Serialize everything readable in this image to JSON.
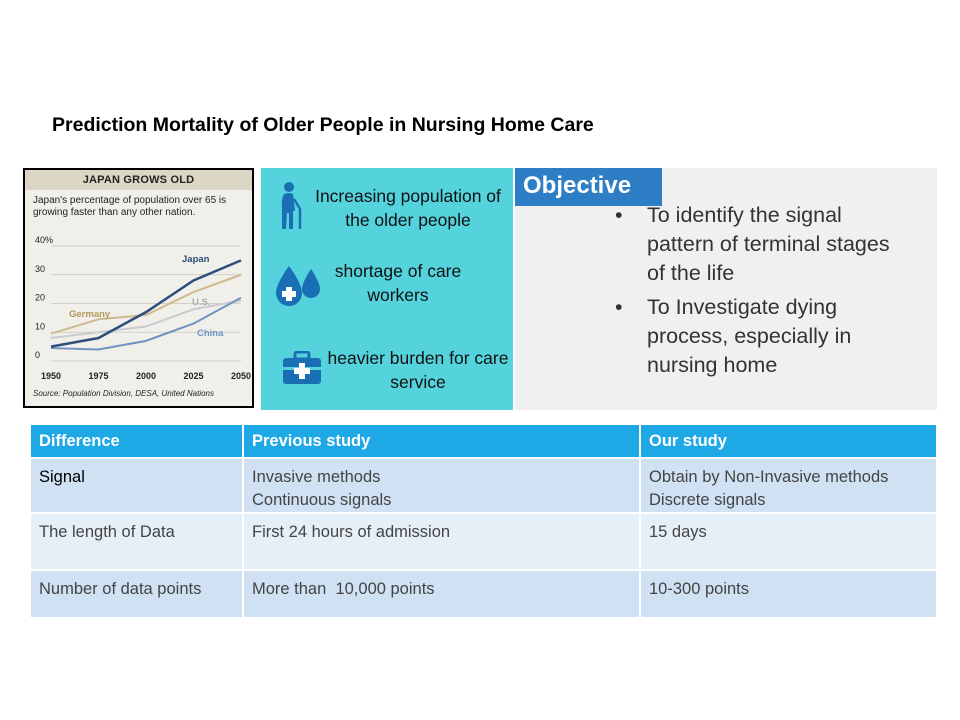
{
  "slide": {
    "title": "Prediction Mortality of Older People in Nursing Home Care"
  },
  "chart": {
    "header": "JAPAN GROWS OLD",
    "description": "Japan's percentage of population over 65 is growing faster than any other nation.",
    "source": "Source: Population Division, DESA, United Nations",
    "background": "#f0efe9",
    "header_bg": "#dcd6c4"
  },
  "chart_data": {
    "type": "line",
    "title": "JAPAN GROWS OLD",
    "x": [
      1950,
      1975,
      2000,
      2025,
      2050
    ],
    "x_tick_labels": [
      "1950",
      "1975",
      "2000",
      "2025",
      "2050"
    ],
    "y_tick_labels": [
      "40%",
      "30",
      "20",
      "10",
      "0"
    ],
    "ylim": [
      0,
      40
    ],
    "series": [
      {
        "name": "Japan",
        "color": "#2c4f7c",
        "values": [
          5,
          8,
          17,
          28,
          35
        ]
      },
      {
        "name": "Germany",
        "color": "#cdbb8f",
        "values": [
          9.5,
          14.5,
          16,
          24,
          30
        ]
      },
      {
        "name": "U.S.",
        "color": "#c9cbd2",
        "values": [
          8,
          10,
          12,
          18,
          21
        ]
      },
      {
        "name": "China",
        "color": "#6e93c1",
        "values": [
          4.5,
          4,
          7,
          13,
          22
        ]
      }
    ],
    "legend": "inline labels",
    "grid": true
  },
  "issues": [
    {
      "text": "Increasing population of the older people",
      "icon": "elderly-person-icon"
    },
    {
      "text": "shortage of care workers",
      "icon": "medical-drops-icon"
    },
    {
      "text": "heavier burden for care service",
      "icon": "first-aid-kit-icon"
    }
  ],
  "objective": {
    "label": "Objective",
    "items": [
      "To identify the signal pattern of terminal stages of the life",
      "To Investigate dying process, especially in nursing home"
    ],
    "bullet": "•"
  },
  "table": {
    "headers": [
      "Difference",
      "Previous study",
      "Our study"
    ],
    "rows": [
      {
        "difference": "Signal",
        "previous": [
          "Invasive methods",
          "Continuous signals"
        ],
        "ours": [
          "Obtain by Non-Invasive methods",
          "Discrete signals"
        ]
      },
      {
        "difference": "The length of Data",
        "previous": [
          "First 24 hours of admission"
        ],
        "ours": [
          "15 days"
        ]
      },
      {
        "difference": "Number of data points",
        "previous": [
          "More than  10,000 points"
        ],
        "ours": [
          "10-300 points"
        ]
      }
    ]
  },
  "colors": {
    "teal": "#55d3dd",
    "objective_blue": "#2e7ec6",
    "table_header": "#1fa8e6",
    "row_dark": "#cfe1f3",
    "row_light": "#e5eff8",
    "icon_blue": "#1a6fb4"
  }
}
